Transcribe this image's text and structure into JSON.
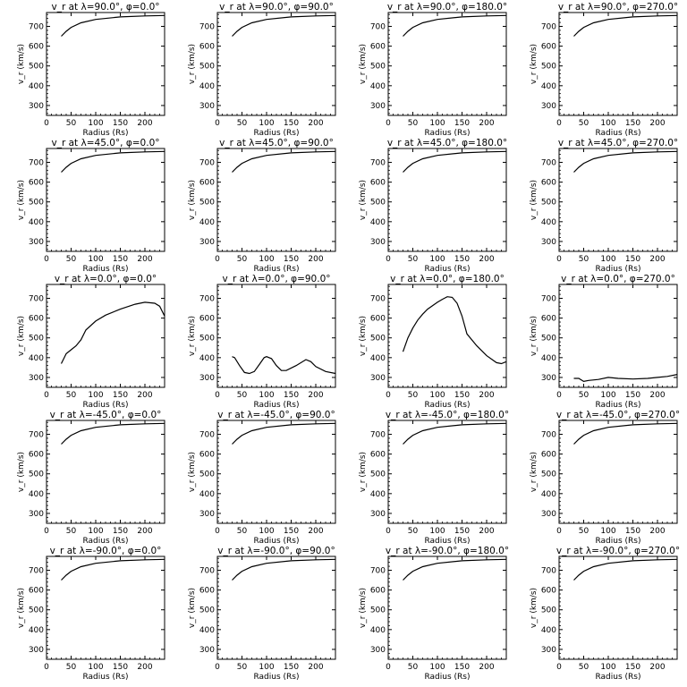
{
  "figure": {
    "xlabel": "Radius (Rs)",
    "ylabel": "v_r (km/s)",
    "xlim": [
      0,
      240
    ],
    "ylim": [
      250,
      770
    ],
    "xticks": [
      0,
      50,
      100,
      150,
      200
    ],
    "yticks": [
      300,
      400,
      500,
      600,
      700
    ],
    "rows": 5,
    "cols": 4
  },
  "chart_data": [
    {
      "type": "line",
      "title": "v_r at λ=90.0°, φ=0.0°",
      "series": [
        {
          "x": [
            30,
            40,
            50,
            70,
            100,
            150,
            200,
            240
          ],
          "values": [
            650,
            675,
            695,
            718,
            735,
            748,
            753,
            755
          ]
        }
      ]
    },
    {
      "type": "line",
      "title": "v_r at λ=90.0°, φ=90.0°",
      "series": [
        {
          "x": [
            30,
            40,
            50,
            70,
            100,
            150,
            200,
            240
          ],
          "values": [
            650,
            675,
            695,
            718,
            735,
            748,
            753,
            755
          ]
        }
      ]
    },
    {
      "type": "line",
      "title": "v_r at λ=90.0°, φ=180.0°",
      "series": [
        {
          "x": [
            30,
            40,
            50,
            70,
            100,
            150,
            200,
            240
          ],
          "values": [
            650,
            675,
            695,
            718,
            735,
            748,
            753,
            755
          ]
        }
      ]
    },
    {
      "type": "line",
      "title": "v_r at λ=90.0°, φ=270.0°",
      "series": [
        {
          "x": [
            30,
            40,
            50,
            70,
            100,
            150,
            200,
            240
          ],
          "values": [
            650,
            675,
            695,
            718,
            735,
            748,
            753,
            755
          ]
        }
      ]
    },
    {
      "type": "line",
      "title": "v_r at λ=45.0°, φ=0.0°",
      "series": [
        {
          "x": [
            30,
            40,
            50,
            70,
            100,
            150,
            200,
            240
          ],
          "values": [
            650,
            675,
            695,
            718,
            735,
            748,
            753,
            755
          ]
        }
      ]
    },
    {
      "type": "line",
      "title": "v_r at λ=45.0°, φ=90.0°",
      "series": [
        {
          "x": [
            30,
            40,
            50,
            70,
            100,
            150,
            200,
            240
          ],
          "values": [
            650,
            675,
            695,
            718,
            735,
            748,
            753,
            755
          ]
        }
      ]
    },
    {
      "type": "line",
      "title": "v_r at λ=45.0°, φ=180.0°",
      "series": [
        {
          "x": [
            30,
            40,
            50,
            70,
            100,
            150,
            200,
            240
          ],
          "values": [
            650,
            675,
            695,
            718,
            735,
            748,
            753,
            755
          ]
        }
      ]
    },
    {
      "type": "line",
      "title": "v_r at λ=45.0°, φ=270.0°",
      "series": [
        {
          "x": [
            30,
            40,
            50,
            70,
            100,
            150,
            200,
            240
          ],
          "values": [
            650,
            675,
            695,
            718,
            735,
            748,
            753,
            755
          ]
        }
      ]
    },
    {
      "type": "line",
      "title": "v_r at λ=0.0°, φ=0.0°",
      "series": [
        {
          "x": [
            30,
            35,
            40,
            50,
            60,
            70,
            80,
            100,
            120,
            150,
            180,
            200,
            220,
            230,
            240
          ],
          "values": [
            370,
            395,
            420,
            440,
            460,
            490,
            540,
            585,
            615,
            645,
            670,
            680,
            675,
            660,
            610
          ]
        }
      ]
    },
    {
      "type": "line",
      "title": "v_r at λ=0.0°, φ=90.0°",
      "series": [
        {
          "x": [
            30,
            35,
            45,
            55,
            65,
            75,
            85,
            95,
            100,
            110,
            120,
            130,
            140,
            160,
            180,
            190,
            200,
            220,
            240
          ],
          "values": [
            405,
            400,
            360,
            325,
            320,
            330,
            365,
            400,
            405,
            395,
            360,
            335,
            335,
            360,
            390,
            380,
            355,
            330,
            320
          ]
        }
      ]
    },
    {
      "type": "line",
      "title": "v_r at λ=0.0°, φ=180.0°",
      "series": [
        {
          "x": [
            30,
            40,
            50,
            60,
            70,
            80,
            100,
            110,
            120,
            130,
            140,
            150,
            160,
            180,
            200,
            220,
            230,
            240
          ],
          "values": [
            430,
            500,
            550,
            590,
            620,
            645,
            680,
            695,
            708,
            705,
            675,
            610,
            520,
            460,
            410,
            375,
            370,
            380
          ]
        }
      ]
    },
    {
      "type": "line",
      "title": "v_r at λ=0.0°, φ=270.0°",
      "series": [
        {
          "x": [
            30,
            40,
            50,
            60,
            80,
            100,
            120,
            150,
            180,
            200,
            220,
            240
          ],
          "values": [
            295,
            295,
            280,
            285,
            290,
            300,
            295,
            292,
            295,
            300,
            305,
            315
          ]
        }
      ]
    },
    {
      "type": "line",
      "title": "v_r at λ=-45.0°, φ=0.0°",
      "series": [
        {
          "x": [
            30,
            40,
            50,
            70,
            100,
            150,
            200,
            240
          ],
          "values": [
            650,
            675,
            695,
            718,
            735,
            748,
            753,
            755
          ]
        }
      ]
    },
    {
      "type": "line",
      "title": "v_r at λ=-45.0°, φ=90.0°",
      "series": [
        {
          "x": [
            30,
            40,
            50,
            70,
            100,
            150,
            200,
            240
          ],
          "values": [
            650,
            675,
            695,
            718,
            735,
            748,
            753,
            755
          ]
        }
      ]
    },
    {
      "type": "line",
      "title": "v_r at λ=-45.0°, φ=180.0°",
      "series": [
        {
          "x": [
            30,
            40,
            50,
            70,
            100,
            150,
            200,
            240
          ],
          "values": [
            650,
            675,
            695,
            718,
            735,
            748,
            753,
            755
          ]
        }
      ]
    },
    {
      "type": "line",
      "title": "v_r at λ=-45.0°, φ=270.0°",
      "series": [
        {
          "x": [
            30,
            40,
            50,
            70,
            100,
            150,
            200,
            240
          ],
          "values": [
            650,
            675,
            695,
            718,
            735,
            748,
            753,
            755
          ]
        }
      ]
    },
    {
      "type": "line",
      "title": "v_r at λ=-90.0°, φ=0.0°",
      "series": [
        {
          "x": [
            30,
            40,
            50,
            70,
            100,
            150,
            200,
            240
          ],
          "values": [
            650,
            675,
            695,
            718,
            735,
            748,
            753,
            755
          ]
        }
      ]
    },
    {
      "type": "line",
      "title": "v_r at λ=-90.0°, φ=90.0°",
      "series": [
        {
          "x": [
            30,
            40,
            50,
            70,
            100,
            150,
            200,
            240
          ],
          "values": [
            650,
            675,
            695,
            718,
            735,
            748,
            753,
            755
          ]
        }
      ]
    },
    {
      "type": "line",
      "title": "v_r at λ=-90.0°, φ=180.0°",
      "series": [
        {
          "x": [
            30,
            40,
            50,
            70,
            100,
            150,
            200,
            240
          ],
          "values": [
            650,
            675,
            695,
            718,
            735,
            748,
            753,
            755
          ]
        }
      ]
    },
    {
      "type": "line",
      "title": "v_r at λ=-90.0°, φ=270.0°",
      "series": [
        {
          "x": [
            30,
            40,
            50,
            70,
            100,
            150,
            200,
            240
          ],
          "values": [
            650,
            675,
            695,
            718,
            735,
            748,
            753,
            755
          ]
        }
      ]
    }
  ]
}
